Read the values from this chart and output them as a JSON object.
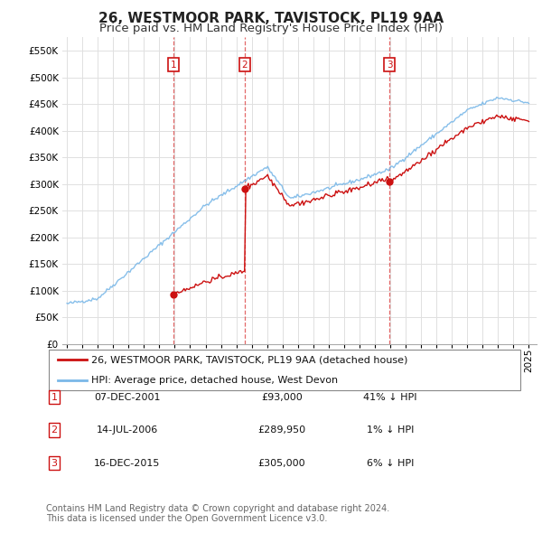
{
  "title": "26, WESTMOOR PARK, TAVISTOCK, PL19 9AA",
  "subtitle": "Price paid vs. HM Land Registry's House Price Index (HPI)",
  "ylim": [
    0,
    575000
  ],
  "yticks": [
    0,
    50000,
    100000,
    150000,
    200000,
    250000,
    300000,
    350000,
    400000,
    450000,
    500000,
    550000
  ],
  "ytick_labels": [
    "£0",
    "£50K",
    "£100K",
    "£150K",
    "£200K",
    "£250K",
    "£300K",
    "£350K",
    "£400K",
    "£450K",
    "£500K",
    "£550K"
  ],
  "hpi_color": "#7ab8e8",
  "price_color": "#cc1111",
  "vline_color": "#dd4444",
  "background_color": "#ffffff",
  "grid_color": "#e0e0e0",
  "sale_year_floats": [
    2001.92,
    2006.54,
    2015.96
  ],
  "sale_prices": [
    93000,
    289950,
    305000
  ],
  "sale_labels": [
    "1",
    "2",
    "3"
  ],
  "table_rows": [
    [
      "1",
      "07-DEC-2001",
      "£93,000",
      "41% ↓ HPI"
    ],
    [
      "2",
      "14-JUL-2006",
      "£289,950",
      "1% ↓ HPI"
    ],
    [
      "3",
      "16-DEC-2015",
      "£305,000",
      "6% ↓ HPI"
    ]
  ],
  "legend_entries": [
    "26, WESTMOOR PARK, TAVISTOCK, PL19 9AA (detached house)",
    "HPI: Average price, detached house, West Devon"
  ],
  "footer": "Contains HM Land Registry data © Crown copyright and database right 2024.\nThis data is licensed under the Open Government Licence v3.0.",
  "title_fontsize": 11,
  "subtitle_fontsize": 9.5,
  "tick_fontsize": 7.5,
  "legend_fontsize": 8,
  "table_fontsize": 8,
  "footer_fontsize": 7
}
